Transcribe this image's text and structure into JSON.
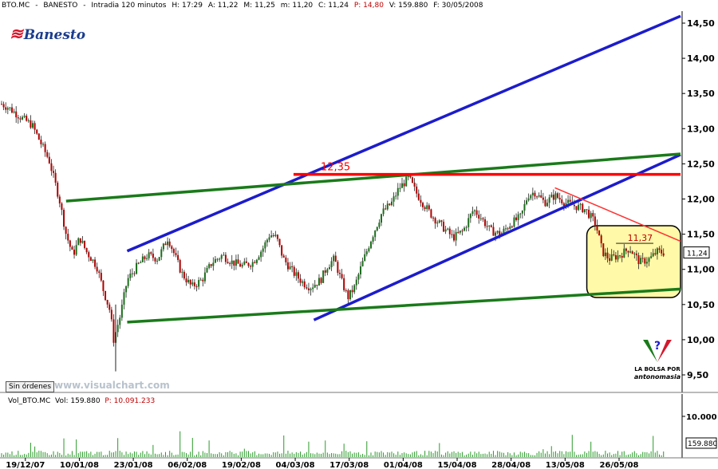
{
  "header": {
    "symbol": "BTO.MC",
    "separator": "-",
    "name": "BANESTO",
    "timeframe": "Intradia 120 minutos",
    "high": "H: 17:29",
    "open": "A: 11,22",
    "max": "M: 11,25",
    "min": "m: 11,20",
    "close": "C: 11,24",
    "p": "P: 14,80",
    "volume": "V: 159.880",
    "date": "F: 30/05/2008"
  },
  "logo_text": "Banesto",
  "sin_ordenes": "Sin órdenes",
  "watermark": "www.visualchart.com",
  "volume_header": {
    "label": "Vol_BTO.MC",
    "vol": "Vol: 159.880",
    "p": "P: 10.091.233"
  },
  "brand": {
    "line1": "LA BOLSA POR",
    "line2": "antonomasia"
  },
  "colors": {
    "background": "#ffffff",
    "blue_channel": "#1c1ccc",
    "green_channel": "#1a7a1a",
    "resistance": "#ff0000",
    "downtrend": "#ff3030",
    "highlight": "#fff9a8",
    "candle_up": "#1a6e1a",
    "candle_down": "#b00000",
    "volume": "#2a9a2a"
  },
  "chart_data": {
    "type": "candlestick",
    "title": "BTO.MC - BANESTO - Intradia 120 minutos",
    "x_tick_labels": [
      "19/12/07",
      "10/01/08",
      "23/01/08",
      "06/02/08",
      "19/02/08",
      "04/03/08",
      "17/03/08",
      "01/04/08",
      "15/04/08",
      "28/04/08",
      "13/05/08",
      "26/05/08"
    ],
    "x_tick_labels_end": "",
    "y_tick_labels": [
      "9,50",
      "10,00",
      "10,50",
      "11,00",
      "11,50",
      "12,00",
      "12,50",
      "13,00",
      "13,50",
      "14,00",
      "14,50"
    ],
    "y_ticks": [
      9.5,
      10.0,
      10.5,
      11.0,
      11.5,
      12.0,
      12.5,
      13.0,
      13.5,
      14.0,
      14.5
    ],
    "ylim": [
      9.33,
      14.62
    ],
    "last_price": 11.24,
    "last_price_label": "11,24",
    "annotations": [
      {
        "text": "12,35",
        "value": 12.35,
        "kind": "resistance"
      },
      {
        "text": "11,37",
        "value": 11.37,
        "kind": "level"
      }
    ],
    "trend_lines": [
      {
        "name": "blue-upper-channel",
        "from": [
          0.185,
          11.26
        ],
        "to": [
          1.0,
          14.6
        ]
      },
      {
        "name": "blue-lower-channel",
        "from": [
          0.46,
          10.28
        ],
        "to": [
          1.0,
          12.63
        ]
      },
      {
        "name": "green-upper-channel",
        "from": [
          0.095,
          11.97
        ],
        "to": [
          1.0,
          12.64
        ]
      },
      {
        "name": "green-lower-channel",
        "from": [
          0.185,
          10.25
        ],
        "to": [
          1.0,
          10.72
        ]
      },
      {
        "name": "red-resistance",
        "from": [
          0.43,
          12.35
        ],
        "to": [
          1.0,
          12.35
        ]
      },
      {
        "name": "red-downtrend",
        "from": [
          0.815,
          12.16
        ],
        "to": [
          1.0,
          11.4
        ]
      }
    ],
    "price_path": [
      [
        0.0,
        13.35
      ],
      [
        0.01,
        13.3
      ],
      [
        0.03,
        13.15
      ],
      [
        0.045,
        13.05
      ],
      [
        0.055,
        12.85
      ],
      [
        0.07,
        12.55
      ],
      [
        0.085,
        12.0
      ],
      [
        0.095,
        11.5
      ],
      [
        0.105,
        11.2
      ],
      [
        0.115,
        11.45
      ],
      [
        0.125,
        11.25
      ],
      [
        0.14,
        11.05
      ],
      [
        0.15,
        10.7
      ],
      [
        0.16,
        10.4
      ],
      [
        0.165,
        10.0
      ],
      [
        0.175,
        10.35
      ],
      [
        0.185,
        10.85
      ],
      [
        0.2,
        11.05
      ],
      [
        0.215,
        11.2
      ],
      [
        0.23,
        11.15
      ],
      [
        0.245,
        11.45
      ],
      [
        0.255,
        11.2
      ],
      [
        0.265,
        10.95
      ],
      [
        0.28,
        10.75
      ],
      [
        0.295,
        10.85
      ],
      [
        0.31,
        11.1
      ],
      [
        0.325,
        11.2
      ],
      [
        0.34,
        11.1
      ],
      [
        0.355,
        11.05
      ],
      [
        0.37,
        11.1
      ],
      [
        0.385,
        11.3
      ],
      [
        0.395,
        11.5
      ],
      [
        0.405,
        11.45
      ],
      [
        0.415,
        11.15
      ],
      [
        0.43,
        10.95
      ],
      [
        0.445,
        10.8
      ],
      [
        0.455,
        10.75
      ],
      [
        0.47,
        10.85
      ],
      [
        0.48,
        11.05
      ],
      [
        0.49,
        11.15
      ],
      [
        0.5,
        10.85
      ],
      [
        0.51,
        10.6
      ],
      [
        0.52,
        10.75
      ],
      [
        0.53,
        11.05
      ],
      [
        0.545,
        11.45
      ],
      [
        0.56,
        11.8
      ],
      [
        0.575,
        11.95
      ],
      [
        0.585,
        12.15
      ],
      [
        0.6,
        12.3
      ],
      [
        0.61,
        12.1
      ],
      [
        0.62,
        11.95
      ],
      [
        0.635,
        11.75
      ],
      [
        0.65,
        11.6
      ],
      [
        0.665,
        11.45
      ],
      [
        0.68,
        11.55
      ],
      [
        0.695,
        11.85
      ],
      [
        0.705,
        11.75
      ],
      [
        0.72,
        11.55
      ],
      [
        0.735,
        11.5
      ],
      [
        0.75,
        11.65
      ],
      [
        0.765,
        11.75
      ],
      [
        0.775,
        12.05
      ],
      [
        0.785,
        12.1
      ],
      [
        0.8,
        11.95
      ],
      [
        0.815,
        12.05
      ],
      [
        0.83,
        11.95
      ],
      [
        0.845,
        11.9
      ],
      [
        0.86,
        11.85
      ],
      [
        0.875,
        11.65
      ],
      [
        0.885,
        11.25
      ],
      [
        0.895,
        11.15
      ],
      [
        0.91,
        11.2
      ],
      [
        0.925,
        11.3
      ],
      [
        0.94,
        11.1
      ],
      [
        0.955,
        11.15
      ],
      [
        0.965,
        11.25
      ],
      [
        0.975,
        11.24
      ]
    ],
    "volume": {
      "y_tick_label": "10.000",
      "last_label": "159.880",
      "last_value": 159880,
      "y_tick_value": 10000
    }
  }
}
